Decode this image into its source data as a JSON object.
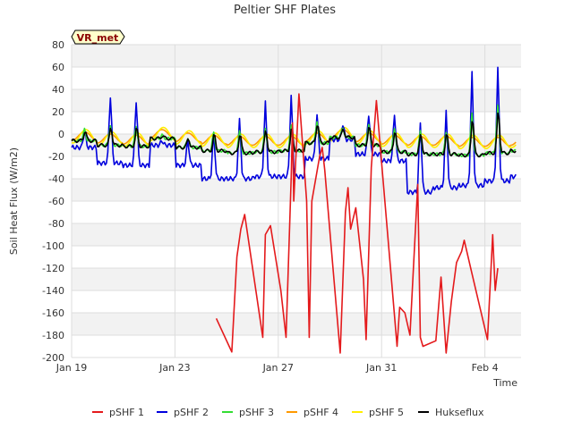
{
  "chart_data": {
    "type": "line",
    "title": "Peltier SHF Plates",
    "xlabel": "Time",
    "ylabel": "Soil Heat Flux (W/m2)",
    "annotation": "VR_met",
    "xlim": [
      0,
      17.4
    ],
    "ylim": [
      -200,
      80
    ],
    "x_ticks": [
      {
        "label": "Jan 19",
        "value": 0
      },
      {
        "label": "Jan 23",
        "value": 4
      },
      {
        "label": "Jan 27",
        "value": 8
      },
      {
        "label": "Jan 31",
        "value": 12
      },
      {
        "label": "Feb 4",
        "value": 16
      }
    ],
    "y_ticks": [
      80,
      60,
      40,
      20,
      0,
      -20,
      -40,
      -60,
      -80,
      -100,
      -120,
      -140,
      -160,
      -180,
      -200
    ],
    "series": [
      {
        "name": "pSHF 1",
        "color": "#e41a1c",
        "x": [
          5.6,
          6.2,
          6.4,
          6.55,
          6.7,
          7.4,
          7.5,
          7.7,
          8.1,
          8.3,
          8.5,
          8.55,
          8.6,
          8.8,
          9.1,
          9.2,
          9.3,
          9.6,
          9.7,
          9.8,
          10.1,
          10.4,
          10.6,
          10.7,
          10.8,
          11.0,
          11.3,
          11.4,
          11.6,
          11.8,
          12.6,
          12.7,
          12.9,
          13.1,
          13.4,
          13.5,
          13.6,
          14.1,
          14.3,
          14.5,
          14.7,
          14.9,
          15.1,
          15.2,
          15.5,
          16.1,
          16.3,
          16.4,
          16.5
        ],
        "y": [
          -165,
          -195,
          -110,
          -85,
          -72,
          -182,
          -90,
          -82,
          -140,
          -182,
          -40,
          10,
          -60,
          36,
          -60,
          -182,
          -60,
          -20,
          -12,
          -32,
          -115,
          -196,
          -70,
          -48,
          -85,
          -66,
          -130,
          -184,
          -30,
          30,
          -190,
          -155,
          -160,
          -180,
          -45,
          -182,
          -190,
          -185,
          -128,
          -196,
          -150,
          -115,
          -105,
          -95,
          -125,
          -184,
          -90,
          -140,
          -120
        ]
      },
      {
        "name": "pSHF 2",
        "color": "#0000dd",
        "x": [],
        "y": []
      },
      {
        "name": "pSHF 3",
        "color": "#33dd33",
        "x": [],
        "y": []
      },
      {
        "name": "pSHF 4",
        "color": "#ff9900",
        "x": [],
        "y": []
      },
      {
        "name": "pSHF 5",
        "color": "#ffee00",
        "x": [],
        "y": []
      },
      {
        "name": "Hukseflux",
        "color": "#000000",
        "x": [],
        "y": []
      }
    ],
    "daily_cycle": {
      "start": 0,
      "end": 17.2,
      "step": 0.05,
      "peak_phase": 0.5,
      "days": [
        {
          "day": 0,
          "blue_base": -12,
          "blue_amp": 14,
          "mid_base": -6,
          "mid_amp": 10,
          "flat": -2
        },
        {
          "day": 1,
          "blue_base": -26,
          "blue_amp": 60,
          "mid_base": -10,
          "mid_amp": 18,
          "flat": -4
        },
        {
          "day": 2,
          "blue_base": -28,
          "blue_amp": 58,
          "mid_base": -11,
          "mid_amp": 18,
          "flat": -5
        },
        {
          "day": 3,
          "blue_base": -10,
          "blue_amp": 4,
          "mid_base": -4,
          "mid_amp": 3,
          "flat": 0
        },
        {
          "day": 4,
          "blue_base": -28,
          "blue_amp": 22,
          "mid_base": -12,
          "mid_amp": 9,
          "flat": -3
        },
        {
          "day": 5,
          "blue_base": -40,
          "blue_amp": 40,
          "mid_base": -15,
          "mid_amp": 16,
          "flat": -5
        },
        {
          "day": 6,
          "blue_base": -40,
          "blue_amp": 52,
          "mid_base": -17,
          "mid_amp": 20,
          "flat": -6
        },
        {
          "day": 7,
          "blue_base": -38,
          "blue_amp": 66,
          "mid_base": -16,
          "mid_amp": 22,
          "flat": -6
        },
        {
          "day": 8,
          "blue_base": -38,
          "blue_amp": 72,
          "mid_base": -15,
          "mid_amp": 22,
          "flat": -6
        },
        {
          "day": 9,
          "blue_base": -22,
          "blue_amp": 40,
          "mid_base": -8,
          "mid_amp": 20,
          "flat": -3
        },
        {
          "day": 10,
          "blue_base": -5,
          "blue_amp": 14,
          "mid_base": -3,
          "mid_amp": 8,
          "flat": 0
        },
        {
          "day": 11,
          "blue_base": -18,
          "blue_amp": 36,
          "mid_base": -10,
          "mid_amp": 18,
          "flat": -3
        },
        {
          "day": 12,
          "blue_base": -24,
          "blue_amp": 42,
          "mid_base": -16,
          "mid_amp": 22,
          "flat": -5
        },
        {
          "day": 13,
          "blue_base": -52,
          "blue_amp": 62,
          "mid_base": -18,
          "mid_amp": 20,
          "flat": -6
        },
        {
          "day": 14,
          "blue_base": -48,
          "blue_amp": 68,
          "mid_base": -18,
          "mid_amp": 20,
          "flat": -6
        },
        {
          "day": 15,
          "blue_base": -46,
          "blue_amp": 100,
          "mid_base": -19,
          "mid_amp": 38,
          "flat": -7
        },
        {
          "day": 16,
          "blue_base": -42,
          "blue_amp": 100,
          "mid_base": -17,
          "mid_amp": 42,
          "flat": -7
        },
        {
          "day": 17,
          "blue_base": -38,
          "blue_amp": 60,
          "mid_base": -15,
          "mid_amp": 22,
          "flat": -6
        }
      ]
    }
  }
}
